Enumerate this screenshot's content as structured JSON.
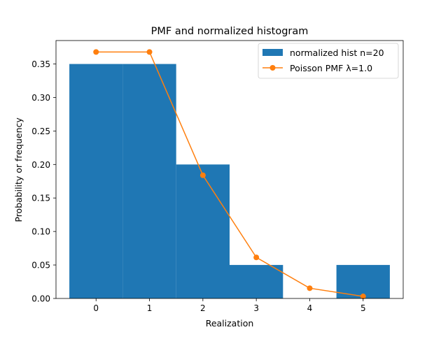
{
  "chart_data": {
    "type": "bar",
    "title": "PMF and normalized histogram",
    "xlabel": "Realization",
    "ylabel": "Probability or frequency",
    "xlim": [
      -0.75,
      5.75
    ],
    "ylim": [
      0,
      0.385
    ],
    "xticks": [
      {
        "value": 0,
        "label": "0"
      },
      {
        "value": 1,
        "label": "1"
      },
      {
        "value": 2,
        "label": "2"
      },
      {
        "value": 3,
        "label": "3"
      },
      {
        "value": 4,
        "label": "4"
      },
      {
        "value": 5,
        "label": "5"
      }
    ],
    "yticks": [
      {
        "value": 0.0,
        "label": "0.00"
      },
      {
        "value": 0.05,
        "label": "0.05"
      },
      {
        "value": 0.1,
        "label": "0.10"
      },
      {
        "value": 0.15,
        "label": "0.15"
      },
      {
        "value": 0.2,
        "label": "0.20"
      },
      {
        "value": 0.25,
        "label": "0.25"
      },
      {
        "value": 0.3,
        "label": "0.30"
      },
      {
        "value": 0.35,
        "label": "0.35"
      }
    ],
    "grid": false,
    "legend_position": "upper-right",
    "series": [
      {
        "name": "normalized hist n=20",
        "kind": "bar",
        "color": "#1f77b4",
        "bins": [
          {
            "start": -0.5,
            "end": 0.5,
            "value": 0.35
          },
          {
            "start": 0.5,
            "end": 1.5,
            "value": 0.35
          },
          {
            "start": 1.5,
            "end": 2.5,
            "value": 0.2
          },
          {
            "start": 2.5,
            "end": 3.5,
            "value": 0.05
          },
          {
            "start": 3.5,
            "end": 4.5,
            "value": 0.0
          },
          {
            "start": 4.5,
            "end": 5.5,
            "value": 0.05
          }
        ]
      },
      {
        "name": "Poisson PMF λ=1.0",
        "kind": "line",
        "color": "#ff7f0e",
        "x": [
          0,
          1,
          2,
          3,
          4,
          5
        ],
        "y": [
          0.3679,
          0.3679,
          0.1839,
          0.0613,
          0.0153,
          0.0031
        ]
      }
    ]
  }
}
